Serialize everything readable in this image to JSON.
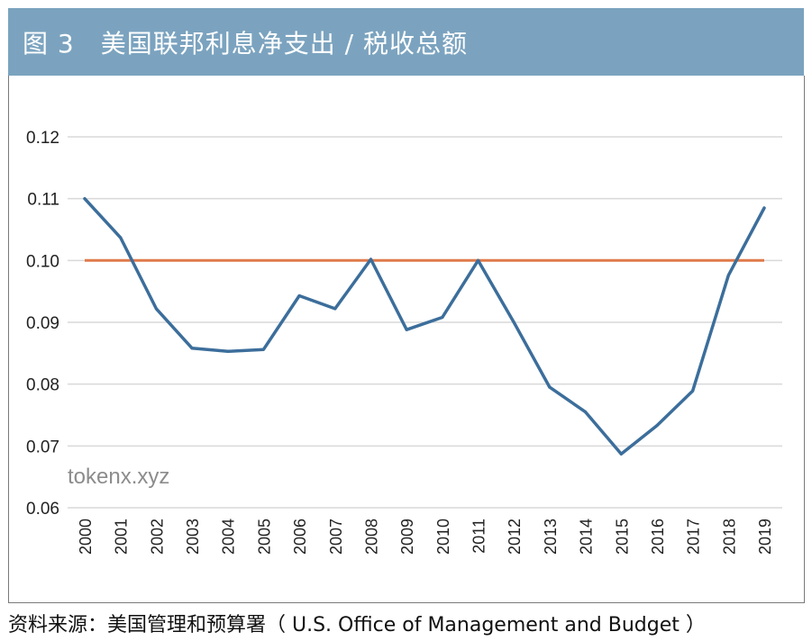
{
  "header": {
    "title": "图 3　美国联邦利息净支出 / 税收总额"
  },
  "watermark": "tokenx.xyz",
  "source": "资料来源：美国管理和预算署（ U.S. Office of Management and Budget ）",
  "colors": {
    "header_bg": "#7ba3bf",
    "series": "#3c6e9b",
    "reference": "#e07a4a",
    "grid": "#d9d9d9"
  },
  "chart_data": {
    "type": "line",
    "title": "图 3　美国联邦利息净支出 / 税收总额",
    "xlabel": "",
    "ylabel": "",
    "x": [
      "2000",
      "2001",
      "2002",
      "2003",
      "2004",
      "2005",
      "2006",
      "2007",
      "2008",
      "2009",
      "2010",
      "2011",
      "2012",
      "2013",
      "2014",
      "2015",
      "2016",
      "2017",
      "2018",
      "2019"
    ],
    "series": [
      {
        "values": [
          0.11,
          0.1037,
          0.0922,
          0.0858,
          0.0853,
          0.0856,
          0.0943,
          0.0922,
          0.1002,
          0.0888,
          0.0908,
          0.1,
          0.09,
          0.0795,
          0.0755,
          0.0687,
          0.0733,
          0.0789,
          0.0976,
          0.1085
        ]
      },
      {
        "values": [
          0.1,
          0.1,
          0.1,
          0.1,
          0.1,
          0.1,
          0.1,
          0.1,
          0.1,
          0.1,
          0.1,
          0.1,
          0.1,
          0.1,
          0.1,
          0.1,
          0.1,
          0.1,
          0.1,
          0.1
        ]
      }
    ],
    "yticks": [
      "0.06",
      "0.07",
      "0.08",
      "0.09",
      "0.10",
      "0.11",
      "0.12"
    ],
    "ylim": [
      0.06,
      0.12
    ],
    "grid": true,
    "legend": "none"
  }
}
